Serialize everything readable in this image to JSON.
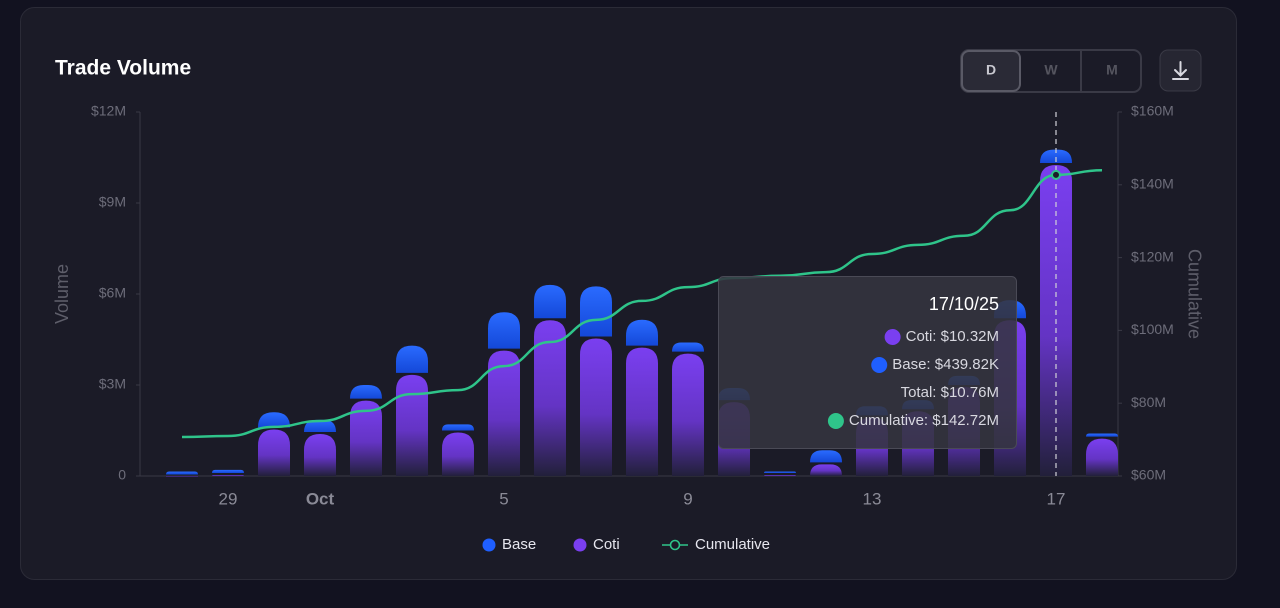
{
  "chart_data": {
    "type": "bar",
    "title": "Trade Volume",
    "controls": [
      "D",
      "W",
      "M"
    ],
    "categories": [
      null,
      "29",
      null,
      "Oct",
      null,
      null,
      null,
      "5",
      null,
      null,
      null,
      "9",
      null,
      null,
      null,
      "13",
      null,
      null,
      null,
      "17",
      null
    ],
    "series": [
      {
        "name": "Base",
        "color": "#1f5fff",
        "values": [
          0.1,
          0.1,
          0.5,
          0.4,
          0.45,
          0.9,
          0.2,
          1.2,
          1.1,
          1.65,
          0.85,
          0.3,
          0.4,
          0.05,
          0.4,
          0.3,
          0.3,
          0.3,
          0.6,
          0.44,
          0.1
        ]
      },
      {
        "name": "Coti",
        "color": "#7a3ff0",
        "values": [
          0.05,
          0.1,
          1.6,
          1.45,
          2.55,
          3.4,
          1.5,
          4.2,
          5.2,
          4.6,
          4.3,
          4.1,
          2.5,
          0.1,
          0.45,
          2.0,
          2.2,
          3.0,
          5.2,
          10.32,
          1.3
        ]
      },
      {
        "name": "Cumulative",
        "color": "#2fc48a",
        "axis": "y2",
        "values": [
          70.7,
          71,
          73.5,
          75.1,
          77.9,
          82.5,
          83.6,
          90.2,
          96.8,
          102.9,
          108.1,
          111.9,
          114.4,
          115,
          116,
          121,
          123.5,
          126,
          133,
          142.72,
          144
        ]
      }
    ],
    "ylabel": "Volume",
    "y2label": "Cumulative",
    "ylim": [
      0,
      12
    ],
    "yticks": [
      0,
      {
        "value": 3,
        "label": "$3M"
      },
      {
        "value": 6,
        "label": "$6M"
      },
      {
        "value": 9,
        "label": "$9M"
      },
      {
        "value": 12,
        "label": "$12M"
      }
    ],
    "y2lim": [
      60,
      160
    ],
    "y2ticks": [
      {
        "value": 60,
        "label": "$60M"
      },
      {
        "value": 80,
        "label": "$80M"
      },
      {
        "value": 100,
        "label": "$100M"
      },
      {
        "value": 120,
        "label": "$120M"
      },
      {
        "value": 140,
        "label": "$140M"
      },
      {
        "value": 160,
        "label": "$160M"
      }
    ],
    "tooltip": {
      "title": "17/10/25",
      "items": [
        "Coti: $10.32M",
        "Base: $439.82K",
        "Total: $10.76M",
        "Cumulative: $142.72M"
      ]
    }
  }
}
